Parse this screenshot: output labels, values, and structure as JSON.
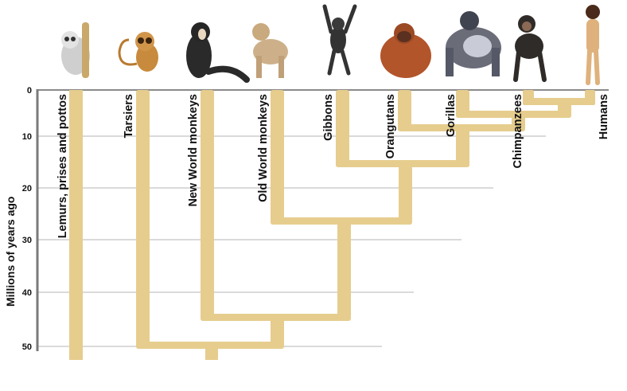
{
  "axis": {
    "label": "Millions of years ago",
    "ticks": [
      "0",
      "10",
      "20",
      "30",
      "40",
      "50"
    ]
  },
  "taxa": [
    {
      "label": "Lemurs, prises and pottos",
      "icon": "lemur-icon"
    },
    {
      "label": "Tarsiers",
      "icon": "tarsier-icon"
    },
    {
      "label": "New World monkeys",
      "icon": "new-world-monkey-icon"
    },
    {
      "label": "Old World monkeys",
      "icon": "baboon-icon"
    },
    {
      "label": "Gibbons",
      "icon": "gibbon-icon"
    },
    {
      "label": "Orangutans",
      "icon": "orangutan-icon"
    },
    {
      "label": "Gorillas",
      "icon": "gorilla-icon"
    },
    {
      "label": "Chimpanzees",
      "icon": "chimpanzee-icon"
    },
    {
      "label": "Humans",
      "icon": "human-icon"
    }
  ],
  "colors": {
    "branch": "#e6cd8e",
    "grid": "#b5b5b5",
    "axis": "#7a7a7a"
  }
}
